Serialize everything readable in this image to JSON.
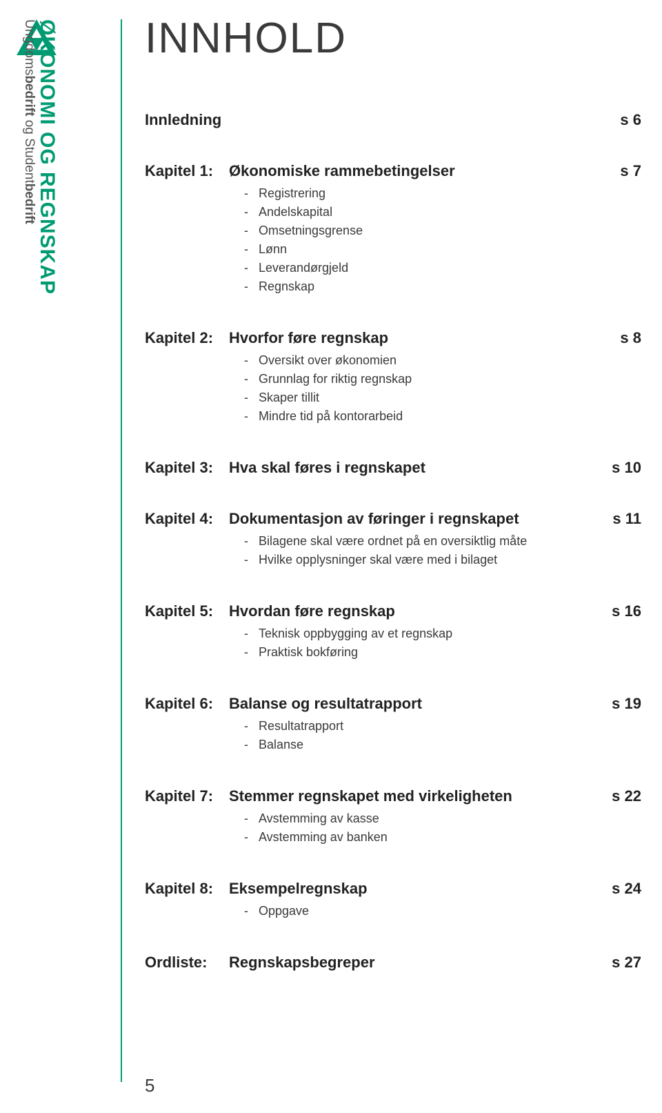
{
  "brand": {
    "logo_color": "#009b72",
    "vertical_main": "ØKONOMI OG REGNSKAP",
    "vertical_sub_parts": [
      "Ungdoms",
      "bedrift",
      " og Student",
      "bedrift"
    ],
    "main_color": "#009b72"
  },
  "page": {
    "number": "5"
  },
  "title": "INNHOLD",
  "toc": {
    "intro": {
      "label": "Innledning",
      "page": "s   6"
    },
    "chapters": [
      {
        "chap": "Kapitel 1:",
        "title": "Økonomiske rammebetingelser",
        "page": "s   7",
        "subs": [
          "Registrering",
          "Andelskapital",
          "Omsetningsgrense",
          "Lønn",
          "Leverandørgjeld",
          "Regnskap"
        ]
      },
      {
        "chap": "Kapitel 2:",
        "title": "Hvorfor føre regnskap",
        "page": "s   8",
        "subs": [
          "Oversikt over økonomien",
          "Grunnlag for riktig regnskap",
          "Skaper tillit",
          "Mindre tid på kontorarbeid"
        ]
      },
      {
        "chap": "Kapitel 3:",
        "title": "Hva skal føres i regnskapet",
        "page": "s 10",
        "subs": []
      },
      {
        "chap": "Kapitel 4:",
        "title": "Dokumentasjon av føringer i regnskapet",
        "page": "s 11",
        "subs": [
          "Bilagene skal være ordnet på en oversiktlig måte",
          "Hvilke opplysninger skal være med i bilaget"
        ]
      },
      {
        "chap": "Kapitel 5:",
        "title": "Hvordan føre regnskap",
        "page": "s 16",
        "subs": [
          "Teknisk oppbygging av et regnskap",
          "Praktisk bokføring"
        ]
      },
      {
        "chap": "Kapitel 6:",
        "title": "Balanse og resultatrapport",
        "page": "s 19",
        "subs": [
          "Resultatrapport",
          "Balanse"
        ]
      },
      {
        "chap": "Kapitel 7:",
        "title": "Stemmer regnskapet med virkeligheten",
        "page": "s 22",
        "subs": [
          "Avstemming av kasse",
          "Avstemming av banken"
        ]
      },
      {
        "chap": "Kapitel 8:",
        "title": "Eksempelregnskap",
        "page": "s 24",
        "subs": [
          "Oppgave"
        ]
      }
    ],
    "glossary": {
      "chap": "Ordliste:",
      "title": "Regnskapsbegreper",
      "page": "s 27"
    }
  }
}
